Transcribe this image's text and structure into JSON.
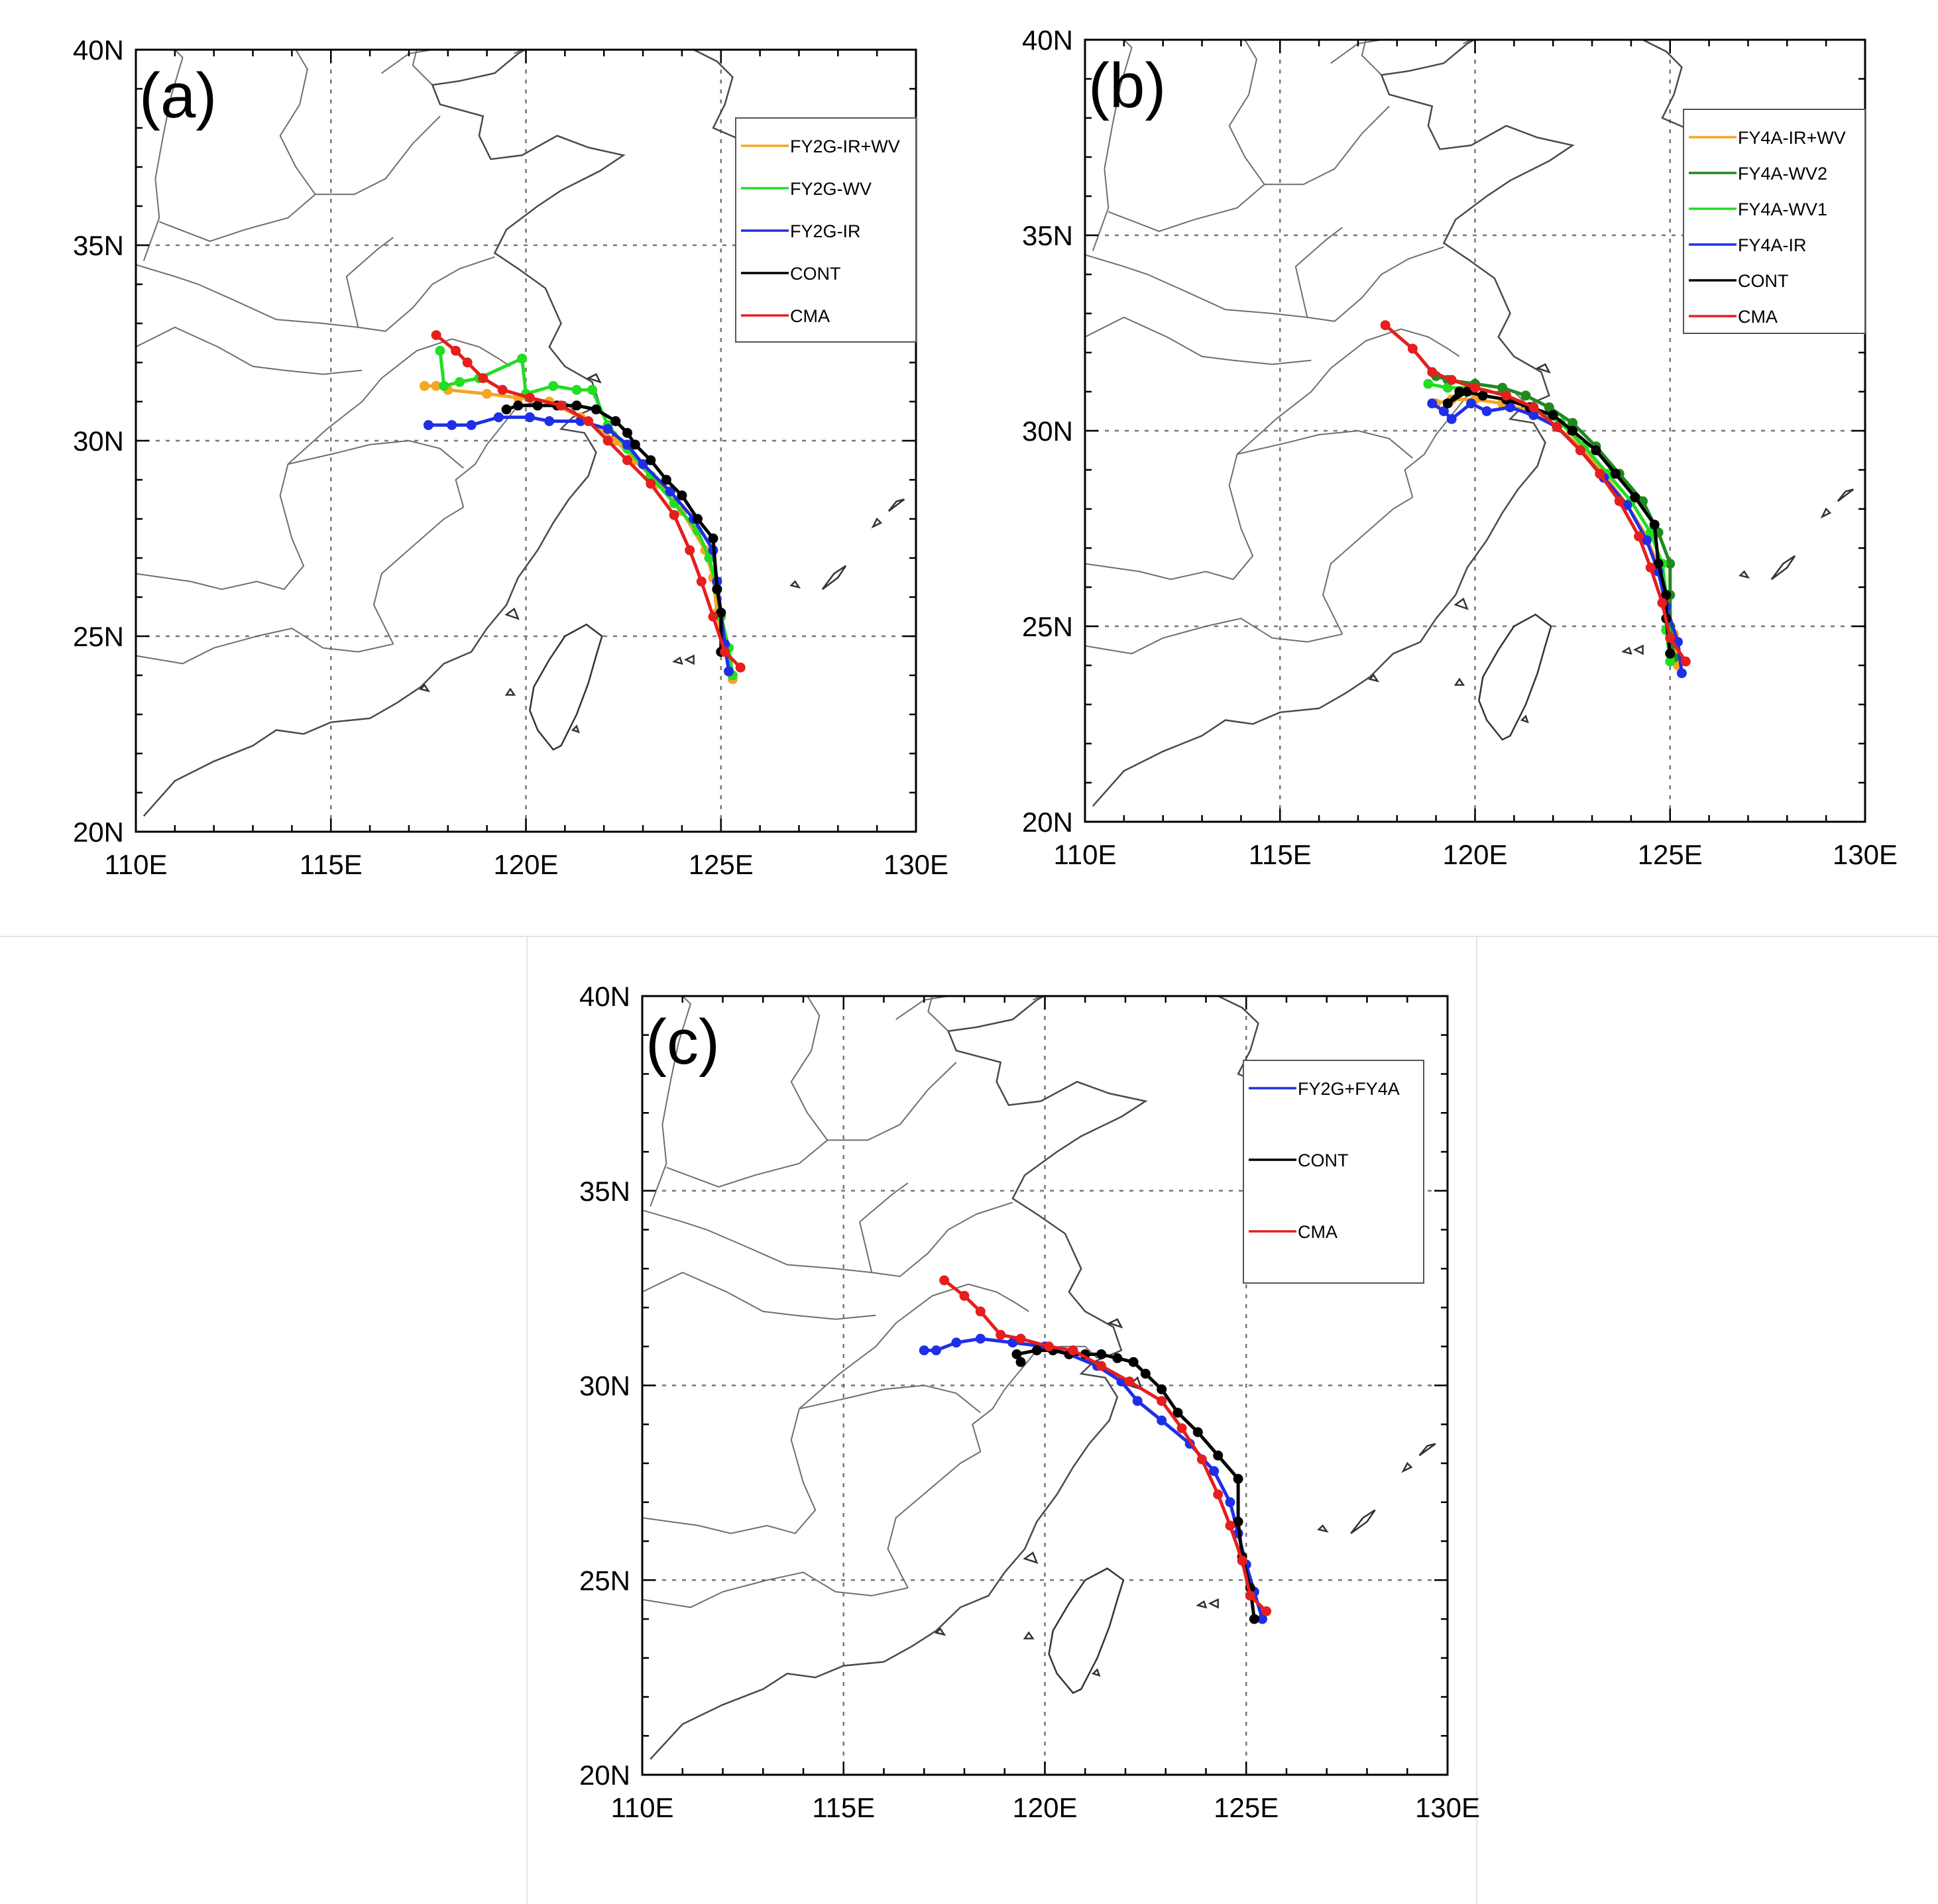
{
  "map": {
    "lon_range": [
      110,
      130
    ],
    "lat_range": [
      20,
      40
    ],
    "lon_ticks": [
      110,
      115,
      120,
      125,
      130
    ],
    "lat_ticks": [
      20,
      25,
      30,
      35,
      40
    ],
    "lon_tick_labels": [
      "110E",
      "115E",
      "120E",
      "125E",
      "130E"
    ],
    "lat_tick_labels": [
      "20N",
      "25N",
      "30N",
      "35N",
      "40N"
    ],
    "dotted_gridlines": {
      "lon": [
        115,
        120,
        125
      ],
      "lat": [
        25,
        30,
        35
      ]
    }
  },
  "colors": {
    "orange": "#f5a623",
    "green": "#22dd22",
    "darkgreen": "#1e8a1e",
    "blue": "#1f2fe6",
    "black": "#000000",
    "red": "#e61e1e"
  },
  "panels": [
    {
      "label": "(a)",
      "legend": [
        {
          "name": "FY2G-IR+WV",
          "color": "#f5a623"
        },
        {
          "name": "FY2G-WV",
          "color": "#22dd22"
        },
        {
          "name": "FY2G-IR",
          "color": "#1f2fe6"
        },
        {
          "name": "CONT",
          "color": "#000000"
        },
        {
          "name": "CMA",
          "color": "#e61e1e"
        }
      ],
      "tracks": [
        {
          "name": "FY2G-IR+WV",
          "color": "#f5a623",
          "points": [
            [
              125.3,
              23.9
            ],
            [
              125.1,
              24.6
            ],
            [
              124.9,
              25.6
            ],
            [
              124.8,
              26.5
            ],
            [
              124.6,
              27.2
            ],
            [
              124.0,
              28.2
            ],
            [
              123.4,
              28.9
            ],
            [
              122.8,
              29.5
            ],
            [
              122.3,
              30.0
            ],
            [
              121.4,
              30.6
            ],
            [
              120.6,
              31.0
            ],
            [
              119.8,
              31.1
            ],
            [
              119.0,
              31.2
            ],
            [
              118.0,
              31.3
            ],
            [
              117.7,
              31.4
            ],
            [
              117.4,
              31.4
            ]
          ]
        },
        {
          "name": "FY2G-WV",
          "color": "#22dd22",
          "points": [
            [
              125.3,
              24.0
            ],
            [
              125.2,
              24.7
            ],
            [
              125.0,
              25.5
            ],
            [
              124.9,
              26.2
            ],
            [
              124.7,
              27.0
            ],
            [
              124.4,
              27.7
            ],
            [
              123.8,
              28.4
            ],
            [
              123.2,
              29.1
            ],
            [
              122.6,
              29.8
            ],
            [
              122.1,
              30.4
            ],
            [
              121.7,
              31.3
            ],
            [
              121.3,
              31.3
            ],
            [
              120.7,
              31.4
            ],
            [
              120.0,
              31.2
            ],
            [
              119.9,
              32.1
            ],
            [
              118.8,
              31.6
            ],
            [
              118.3,
              31.5
            ],
            [
              117.9,
              31.4
            ],
            [
              117.8,
              32.3
            ]
          ]
        },
        {
          "name": "FY2G-IR",
          "color": "#1f2fe6",
          "points": [
            [
              125.2,
              24.1
            ],
            [
              125.1,
              24.8
            ],
            [
              125.0,
              25.6
            ],
            [
              124.9,
              26.4
            ],
            [
              124.8,
              27.2
            ],
            [
              124.3,
              28.0
            ],
            [
              123.7,
              28.7
            ],
            [
              123.0,
              29.4
            ],
            [
              122.6,
              29.9
            ],
            [
              122.1,
              30.3
            ],
            [
              121.4,
              30.5
            ],
            [
              120.6,
              30.5
            ],
            [
              120.1,
              30.6
            ],
            [
              119.3,
              30.6
            ],
            [
              118.6,
              30.4
            ],
            [
              118.1,
              30.4
            ],
            [
              117.5,
              30.4
            ]
          ]
        },
        {
          "name": "CONT",
          "color": "#000000",
          "points": [
            [
              125.0,
              24.6
            ],
            [
              125.0,
              25.6
            ],
            [
              124.9,
              26.2
            ],
            [
              124.8,
              27.5
            ],
            [
              124.4,
              28.0
            ],
            [
              124.0,
              28.6
            ],
            [
              123.6,
              29.0
            ],
            [
              123.2,
              29.5
            ],
            [
              122.8,
              29.9
            ],
            [
              122.6,
              30.2
            ],
            [
              122.3,
              30.5
            ],
            [
              121.8,
              30.8
            ],
            [
              121.3,
              30.9
            ],
            [
              120.8,
              30.9
            ],
            [
              120.3,
              30.9
            ],
            [
              119.8,
              30.9
            ],
            [
              119.5,
              30.8
            ]
          ]
        },
        {
          "name": "CMA",
          "color": "#e61e1e",
          "points": [
            [
              125.5,
              24.2
            ],
            [
              125.1,
              24.6
            ],
            [
              124.8,
              25.5
            ],
            [
              124.5,
              26.4
            ],
            [
              124.2,
              27.2
            ],
            [
              123.8,
              28.1
            ],
            [
              123.2,
              28.9
            ],
            [
              122.6,
              29.5
            ],
            [
              122.1,
              30.0
            ],
            [
              121.6,
              30.5
            ],
            [
              120.9,
              30.9
            ],
            [
              120.1,
              31.1
            ],
            [
              119.4,
              31.3
            ],
            [
              118.9,
              31.6
            ],
            [
              118.5,
              32.0
            ],
            [
              118.2,
              32.3
            ],
            [
              117.7,
              32.7
            ]
          ]
        }
      ]
    },
    {
      "label": "(b)",
      "legend": [
        {
          "name": "FY4A-IR+WV",
          "color": "#f5a623"
        },
        {
          "name": "FY4A-WV2",
          "color": "#1e8a1e"
        },
        {
          "name": "FY4A-WV1",
          "color": "#22dd22"
        },
        {
          "name": "FY4A-IR",
          "color": "#1f2fe6"
        },
        {
          "name": "CONT",
          "color": "#000000"
        },
        {
          "name": "CMA",
          "color": "#e61e1e"
        }
      ],
      "tracks": [
        {
          "name": "FY4A-IR+WV",
          "color": "#f5a623",
          "points": [
            [
              125.2,
              24.0
            ],
            [
              125.1,
              24.8
            ],
            [
              124.9,
              25.7
            ],
            [
              124.7,
              26.5
            ],
            [
              124.4,
              27.3
            ],
            [
              123.9,
              28.1
            ],
            [
              123.3,
              28.9
            ],
            [
              122.7,
              29.6
            ],
            [
              122.1,
              30.1
            ],
            [
              121.4,
              30.5
            ],
            [
              120.7,
              30.7
            ],
            [
              120.0,
              30.8
            ],
            [
              119.4,
              30.8
            ],
            [
              119.0,
              30.7
            ]
          ]
        },
        {
          "name": "FY4A-WV2",
          "color": "#1e8a1e",
          "points": [
            [
              125.1,
              24.2
            ],
            [
              125.0,
              25.0
            ],
            [
              125.0,
              25.8
            ],
            [
              125.0,
              26.6
            ],
            [
              124.7,
              27.4
            ],
            [
              124.3,
              28.2
            ],
            [
              123.7,
              28.9
            ],
            [
              123.1,
              29.6
            ],
            [
              122.5,
              30.2
            ],
            [
              121.9,
              30.6
            ],
            [
              121.3,
              30.9
            ],
            [
              120.7,
              31.1
            ],
            [
              120.0,
              31.2
            ],
            [
              119.3,
              31.3
            ],
            [
              119.0,
              31.4
            ]
          ]
        },
        {
          "name": "FY4A-WV1",
          "color": "#22dd22",
          "points": [
            [
              125.0,
              24.1
            ],
            [
              124.9,
              24.9
            ],
            [
              124.9,
              25.8
            ],
            [
              124.8,
              26.6
            ],
            [
              124.5,
              27.4
            ],
            [
              124.0,
              28.2
            ],
            [
              123.4,
              28.9
            ],
            [
              122.8,
              29.6
            ],
            [
              122.2,
              30.2
            ],
            [
              121.5,
              30.6
            ],
            [
              120.8,
              30.9
            ],
            [
              120.0,
              31.1
            ],
            [
              119.3,
              31.1
            ],
            [
              118.8,
              31.2
            ]
          ]
        },
        {
          "name": "FY4A-IR",
          "color": "#1f2fe6",
          "points": [
            [
              125.3,
              23.8
            ],
            [
              125.2,
              24.6
            ],
            [
              124.9,
              25.5
            ],
            [
              124.7,
              26.4
            ],
            [
              124.4,
              27.2
            ],
            [
              123.9,
              28.1
            ],
            [
              123.3,
              28.8
            ],
            [
              122.7,
              29.5
            ],
            [
              122.1,
              30.1
            ],
            [
              121.5,
              30.4
            ],
            [
              120.9,
              30.6
            ],
            [
              120.3,
              30.5
            ],
            [
              119.9,
              30.7
            ],
            [
              119.4,
              30.3
            ],
            [
              119.2,
              30.5
            ],
            [
              118.9,
              30.7
            ]
          ]
        },
        {
          "name": "CONT",
          "color": "#000000",
          "points": [
            [
              125.0,
              24.3
            ],
            [
              124.9,
              25.2
            ],
            [
              124.9,
              25.8
            ],
            [
              124.7,
              26.6
            ],
            [
              124.6,
              27.6
            ],
            [
              124.1,
              28.3
            ],
            [
              123.6,
              28.9
            ],
            [
              123.1,
              29.5
            ],
            [
              122.5,
              30.0
            ],
            [
              122.0,
              30.4
            ],
            [
              121.4,
              30.6
            ],
            [
              120.8,
              30.8
            ],
            [
              120.2,
              30.9
            ],
            [
              119.8,
              31.0
            ],
            [
              119.3,
              30.7
            ],
            [
              119.6,
              31.0
            ]
          ]
        },
        {
          "name": "CMA",
          "color": "#e61e1e",
          "points": [
            [
              125.4,
              24.1
            ],
            [
              125.0,
              24.7
            ],
            [
              124.8,
              25.6
            ],
            [
              124.5,
              26.5
            ],
            [
              124.2,
              27.3
            ],
            [
              123.7,
              28.2
            ],
            [
              123.2,
              28.9
            ],
            [
              122.7,
              29.5
            ],
            [
              122.1,
              30.1
            ],
            [
              121.5,
              30.6
            ],
            [
              120.8,
              30.9
            ],
            [
              120.0,
              31.1
            ],
            [
              119.4,
              31.3
            ],
            [
              118.9,
              31.5
            ],
            [
              118.4,
              32.1
            ],
            [
              117.7,
              32.7
            ]
          ]
        }
      ]
    },
    {
      "label": "(c)",
      "legend": [
        {
          "name": "FY2G+FY4A",
          "color": "#1f2fe6"
        },
        {
          "name": "CONT",
          "color": "#000000"
        },
        {
          "name": "CMA",
          "color": "#e61e1e"
        }
      ],
      "tracks": [
        {
          "name": "FY2G+FY4A",
          "color": "#1f2fe6",
          "points": [
            [
              125.4,
              24.0
            ],
            [
              125.2,
              24.7
            ],
            [
              125.0,
              25.4
            ],
            [
              124.8,
              26.2
            ],
            [
              124.6,
              27.0
            ],
            [
              124.2,
              27.8
            ],
            [
              123.6,
              28.5
            ],
            [
              122.9,
              29.1
            ],
            [
              122.3,
              29.6
            ],
            [
              121.9,
              30.1
            ],
            [
              121.3,
              30.5
            ],
            [
              120.6,
              30.8
            ],
            [
              120.0,
              31.0
            ],
            [
              119.2,
              31.1
            ],
            [
              118.4,
              31.2
            ],
            [
              117.8,
              31.1
            ],
            [
              117.3,
              30.9
            ],
            [
              117.0,
              30.9
            ]
          ]
        },
        {
          "name": "CONT",
          "color": "#000000",
          "points": [
            [
              125.2,
              24.0
            ],
            [
              125.1,
              24.8
            ],
            [
              124.9,
              25.6
            ],
            [
              124.8,
              26.5
            ],
            [
              124.8,
              27.6
            ],
            [
              124.3,
              28.2
            ],
            [
              123.8,
              28.8
            ],
            [
              123.3,
              29.3
            ],
            [
              122.9,
              29.9
            ],
            [
              122.5,
              30.3
            ],
            [
              122.2,
              30.6
            ],
            [
              121.8,
              30.7
            ],
            [
              121.4,
              30.8
            ],
            [
              121.0,
              30.8
            ],
            [
              120.6,
              30.8
            ],
            [
              120.2,
              30.9
            ],
            [
              119.8,
              30.9
            ],
            [
              119.3,
              30.8
            ],
            [
              119.4,
              30.6
            ]
          ]
        },
        {
          "name": "CMA",
          "color": "#e61e1e",
          "points": [
            [
              125.5,
              24.2
            ],
            [
              125.1,
              24.6
            ],
            [
              124.9,
              25.5
            ],
            [
              124.6,
              26.4
            ],
            [
              124.3,
              27.2
            ],
            [
              123.9,
              28.1
            ],
            [
              123.4,
              28.9
            ],
            [
              122.9,
              29.6
            ],
            [
              122.1,
              30.1
            ],
            [
              121.4,
              30.5
            ],
            [
              120.7,
              30.9
            ],
            [
              120.1,
              31.0
            ],
            [
              119.4,
              31.2
            ],
            [
              118.9,
              31.3
            ],
            [
              118.4,
              31.9
            ],
            [
              118.0,
              32.3
            ],
            [
              117.5,
              32.7
            ]
          ]
        }
      ]
    }
  ]
}
